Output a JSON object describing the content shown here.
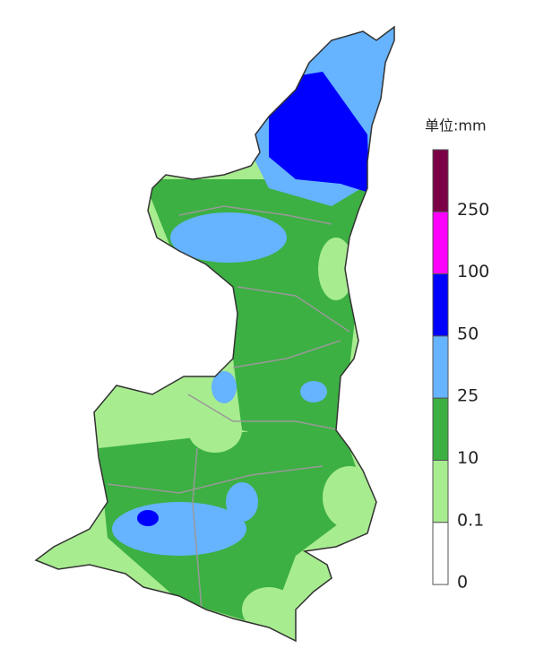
{
  "legend": {
    "title": "单位:mm",
    "labels": [
      "250",
      "100",
      "50",
      "25",
      "10",
      "0.1",
      "0"
    ],
    "colors": [
      "#7b0046",
      "#ff00ff",
      "#0000ff",
      "#66b3ff",
      "#3cb043",
      "#a8ec90",
      "#ffffff"
    ]
  }
}
